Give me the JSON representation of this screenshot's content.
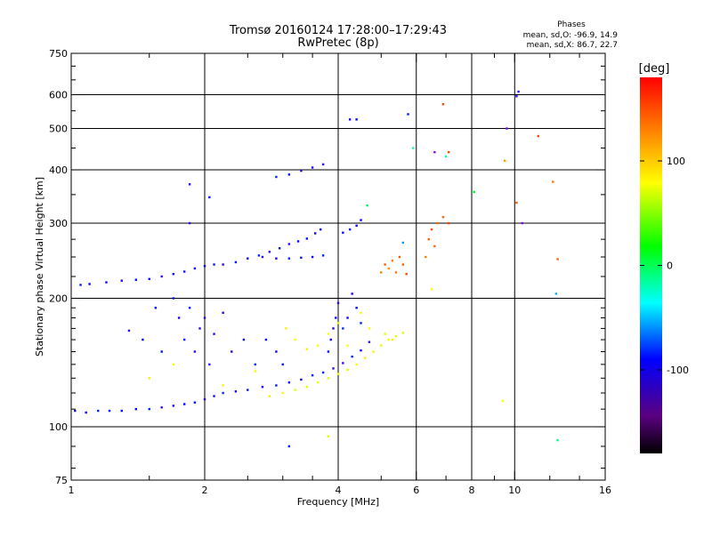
{
  "chart_data": {
    "type": "scatter",
    "title": "Tromsø 20160124 17:28:00–17:29:43",
    "subtitle": "RwPretec (8p)",
    "xlabel": "Frequency [MHz]",
    "ylabel": "Stationary phase Virtual Height [km]",
    "x_scale": "log2",
    "y_scale": "log",
    "xlim": [
      1,
      16
    ],
    "ylim": [
      75,
      750
    ],
    "x_ticks": [
      1,
      2,
      4,
      6,
      8,
      10,
      16
    ],
    "x_minor_ticks": [
      1.5,
      2.5,
      3,
      3.5,
      5,
      7,
      9,
      12,
      14
    ],
    "x_gridlines": [
      2,
      4,
      6,
      8,
      10
    ],
    "y_ticks": [
      75,
      100,
      200,
      300,
      400,
      500,
      600,
      750
    ],
    "y_minor_ticks": [
      80,
      90,
      110,
      120,
      130,
      140,
      150,
      160,
      170,
      180,
      190,
      225,
      250,
      275,
      350,
      450,
      550,
      650,
      700
    ],
    "y_gridlines": [
      100,
      200,
      300,
      400,
      500,
      600
    ],
    "grid": true,
    "legend": {
      "title": "Phases",
      "lines": [
        "mean, sd,O:  -96.9, 14.9",
        "mean, sd,X:   86.7, 22.7"
      ],
      "position": "top-right"
    },
    "colorbar": {
      "label": "[deg]",
      "range": [
        -180,
        180
      ],
      "ticks": [
        100,
        0,
        -100
      ],
      "position": "right"
    },
    "series": [
      {
        "mode": "O",
        "points": [
          [
            1.02,
            109
          ],
          [
            1.08,
            108
          ],
          [
            1.15,
            109
          ],
          [
            1.22,
            109
          ],
          [
            1.3,
            109
          ],
          [
            1.4,
            110
          ],
          [
            1.5,
            110
          ],
          [
            1.6,
            111
          ],
          [
            1.7,
            112
          ],
          [
            1.8,
            113
          ],
          [
            1.9,
            114
          ],
          [
            2.0,
            116
          ],
          [
            2.1,
            118
          ],
          [
            2.2,
            120
          ],
          [
            2.35,
            121
          ],
          [
            2.5,
            122
          ],
          [
            2.7,
            124
          ],
          [
            2.9,
            125
          ],
          [
            3.1,
            127
          ],
          [
            3.3,
            129
          ],
          [
            3.5,
            132
          ],
          [
            3.7,
            134
          ],
          [
            3.9,
            137
          ],
          [
            4.1,
            141
          ],
          [
            4.3,
            146
          ],
          [
            4.5,
            151
          ],
          [
            4.7,
            158
          ],
          [
            1.05,
            215
          ],
          [
            1.1,
            216
          ],
          [
            1.2,
            218
          ],
          [
            1.3,
            220
          ],
          [
            1.4,
            221
          ],
          [
            1.5,
            222
          ],
          [
            1.6,
            225
          ],
          [
            1.7,
            228
          ],
          [
            1.8,
            231
          ],
          [
            1.9,
            235
          ],
          [
            2.0,
            238
          ],
          [
            2.1,
            240
          ],
          [
            2.2,
            240
          ],
          [
            2.35,
            243
          ],
          [
            2.5,
            248
          ],
          [
            2.65,
            252
          ],
          [
            2.8,
            257
          ],
          [
            2.95,
            262
          ],
          [
            3.1,
            268
          ],
          [
            3.25,
            272
          ],
          [
            3.4,
            276
          ],
          [
            3.55,
            284
          ],
          [
            3.65,
            290
          ],
          [
            2.7,
            250
          ],
          [
            2.9,
            248
          ],
          [
            3.1,
            248
          ],
          [
            3.3,
            249
          ],
          [
            3.5,
            250
          ],
          [
            3.7,
            252
          ],
          [
            2.9,
            385
          ],
          [
            3.1,
            390
          ],
          [
            3.3,
            398
          ],
          [
            3.5,
            405
          ],
          [
            3.7,
            412
          ],
          [
            4.1,
            285
          ],
          [
            4.25,
            290
          ],
          [
            4.4,
            296
          ],
          [
            4.5,
            305
          ],
          [
            1.35,
            168
          ],
          [
            1.45,
            160
          ],
          [
            1.55,
            190
          ],
          [
            1.6,
            150
          ],
          [
            1.7,
            200
          ],
          [
            1.75,
            180
          ],
          [
            1.8,
            160
          ],
          [
            1.85,
            190
          ],
          [
            1.9,
            150
          ],
          [
            1.95,
            170
          ],
          [
            2.0,
            180
          ],
          [
            2.05,
            140
          ],
          [
            2.1,
            165
          ],
          [
            2.2,
            185
          ],
          [
            2.3,
            150
          ],
          [
            2.45,
            160
          ],
          [
            2.6,
            140
          ],
          [
            2.75,
            160
          ],
          [
            2.9,
            150
          ],
          [
            3.0,
            140
          ],
          [
            3.8,
            150
          ],
          [
            3.85,
            160
          ],
          [
            3.9,
            170
          ],
          [
            3.95,
            180
          ],
          [
            4.0,
            195
          ],
          [
            4.1,
            170
          ],
          [
            4.2,
            180
          ],
          [
            4.3,
            205
          ],
          [
            4.4,
            190
          ],
          [
            4.5,
            175
          ],
          [
            1.85,
            300
          ],
          [
            2.05,
            345
          ],
          [
            1.85,
            370
          ],
          [
            4.25,
            525
          ],
          [
            4.4,
            525
          ],
          [
            5.75,
            540
          ],
          [
            10.1,
            595
          ],
          [
            10.2,
            610
          ],
          [
            3.1,
            90
          ]
        ]
      },
      {
        "mode": "X",
        "points": [
          [
            2.8,
            118
          ],
          [
            3.0,
            120
          ],
          [
            3.2,
            122
          ],
          [
            3.4,
            124
          ],
          [
            3.6,
            127
          ],
          [
            3.8,
            130
          ],
          [
            4.0,
            133
          ],
          [
            4.2,
            136
          ],
          [
            4.4,
            140
          ],
          [
            4.6,
            145
          ],
          [
            4.8,
            150
          ],
          [
            5.0,
            155
          ],
          [
            5.2,
            160
          ],
          [
            5.4,
            163
          ],
          [
            5.6,
            166
          ],
          [
            3.05,
            170
          ],
          [
            3.2,
            160
          ],
          [
            3.4,
            152
          ],
          [
            3.6,
            155
          ],
          [
            3.8,
            165
          ],
          [
            4.0,
            175
          ],
          [
            4.2,
            155
          ],
          [
            4.5,
            185
          ],
          [
            4.7,
            170
          ],
          [
            5.1,
            165
          ],
          [
            5.3,
            160
          ],
          [
            1.7,
            140
          ],
          [
            1.5,
            130
          ],
          [
            2.6,
            135
          ],
          [
            2.2,
            125
          ],
          [
            6.4,
            275
          ],
          [
            6.5,
            290
          ],
          [
            6.7,
            300
          ],
          [
            6.9,
            310
          ],
          [
            7.1,
            300
          ],
          [
            6.3,
            250
          ],
          [
            6.6,
            265
          ],
          [
            5.0,
            230
          ],
          [
            5.1,
            240
          ],
          [
            5.2,
            235
          ],
          [
            5.3,
            245
          ],
          [
            5.4,
            230
          ],
          [
            5.5,
            250
          ],
          [
            5.6,
            240
          ],
          [
            5.7,
            228
          ],
          [
            3.8,
            95
          ],
          [
            7.1,
            440
          ],
          [
            6.9,
            570
          ],
          [
            6.5,
            210
          ],
          [
            10.1,
            335
          ],
          [
            11.3,
            480
          ],
          [
            12.2,
            375
          ],
          [
            12.5,
            247
          ],
          [
            9.4,
            115
          ]
        ]
      },
      {
        "mode": "scatter-high",
        "points": [
          [
            5.9,
            450
          ],
          [
            6.6,
            440
          ],
          [
            7.0,
            430
          ],
          [
            8.1,
            355
          ],
          [
            9.5,
            420
          ],
          [
            9.6,
            500
          ],
          [
            12.4,
            205
          ],
          [
            12.5,
            93
          ],
          [
            10.4,
            300
          ],
          [
            5.6,
            270
          ],
          [
            4.65,
            330
          ]
        ]
      }
    ]
  }
}
